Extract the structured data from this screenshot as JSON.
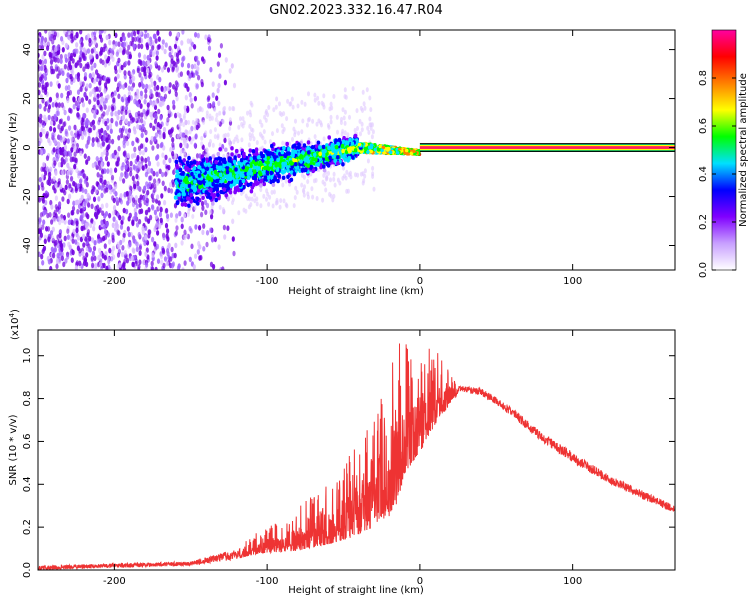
{
  "title": "GN02.2023.332.16.47.R04",
  "chart_data": [
    {
      "type": "heatmap",
      "title": "GN02.2023.332.16.47.R04",
      "xlabel": "Height of straight line (km)",
      "ylabel": "Frequency (Hz)",
      "xlim": [
        -250,
        167
      ],
      "ylim": [
        -50,
        48
      ],
      "x_ticks": [
        -200,
        -100,
        0,
        100
      ],
      "y_ticks": [
        -40,
        -20,
        0,
        20,
        40
      ],
      "colorbar": {
        "label": "Normalized spectral amplitude",
        "range": [
          0.0,
          1.0
        ],
        "ticks": [
          "0.0",
          "0.2",
          "0.4",
          "0.6",
          "0.8"
        ],
        "colors": [
          "#ffffff",
          "#c8a0ff",
          "#8000ff",
          "#0000ff",
          "#00e0ff",
          "#00ff00",
          "#ffff00",
          "#ff8000",
          "#ff0000",
          "#ff00a0"
        ]
      },
      "features": [
        {
          "name": "noise_cloud",
          "x_range": [
            -250,
            -140
          ],
          "y_range": [
            -50,
            48
          ],
          "amplitude": 0.15
        },
        {
          "name": "spread_band",
          "x_range": [
            -160,
            -40
          ],
          "y_start": -15,
          "y_end": 0,
          "amplitude": 0.35
        },
        {
          "name": "converging_band",
          "x_range": [
            -40,
            0
          ],
          "y_start": 0,
          "y_end": -2,
          "amplitude": 0.6
        },
        {
          "name": "direct_line",
          "x_range": [
            0,
            167
          ],
          "y": 0,
          "amplitude": 1.0
        }
      ]
    },
    {
      "type": "line",
      "xlabel": "Height of straight line (km)",
      "ylabel": "SNR (10 * v/v)",
      "y_multiplier": "(x10",
      "y_multiplier_exp": "4",
      "y_multiplier_close": ")",
      "xlim": [
        -250,
        167
      ],
      "ylim": [
        0,
        1.12
      ],
      "x_ticks": [
        -200,
        -100,
        0,
        100
      ],
      "y_ticks": [
        "0.0",
        "0.2",
        "0.4",
        "0.6",
        "0.8",
        "1.0"
      ],
      "color": "#ee3333",
      "envelope": {
        "x": [
          -250,
          -150,
          -120,
          -110,
          -100,
          -80,
          -60,
          -45,
          -30,
          -20,
          -15,
          -10,
          0,
          10,
          25,
          40,
          60,
          80,
          100,
          120,
          140,
          167
        ],
        "base": [
          0.0,
          0.02,
          0.05,
          0.07,
          0.08,
          0.09,
          0.12,
          0.15,
          0.2,
          0.25,
          0.3,
          0.45,
          0.55,
          0.68,
          0.82,
          0.8,
          0.7,
          0.58,
          0.48,
          0.4,
          0.33,
          0.25
        ],
        "peak": [
          0.02,
          0.04,
          0.1,
          0.16,
          0.2,
          0.3,
          0.4,
          0.55,
          0.72,
          0.9,
          1.12,
          1.05,
          1.1,
          1.05,
          0.86,
          0.85,
          0.76,
          0.64,
          0.55,
          0.46,
          0.39,
          0.3
        ]
      }
    }
  ]
}
